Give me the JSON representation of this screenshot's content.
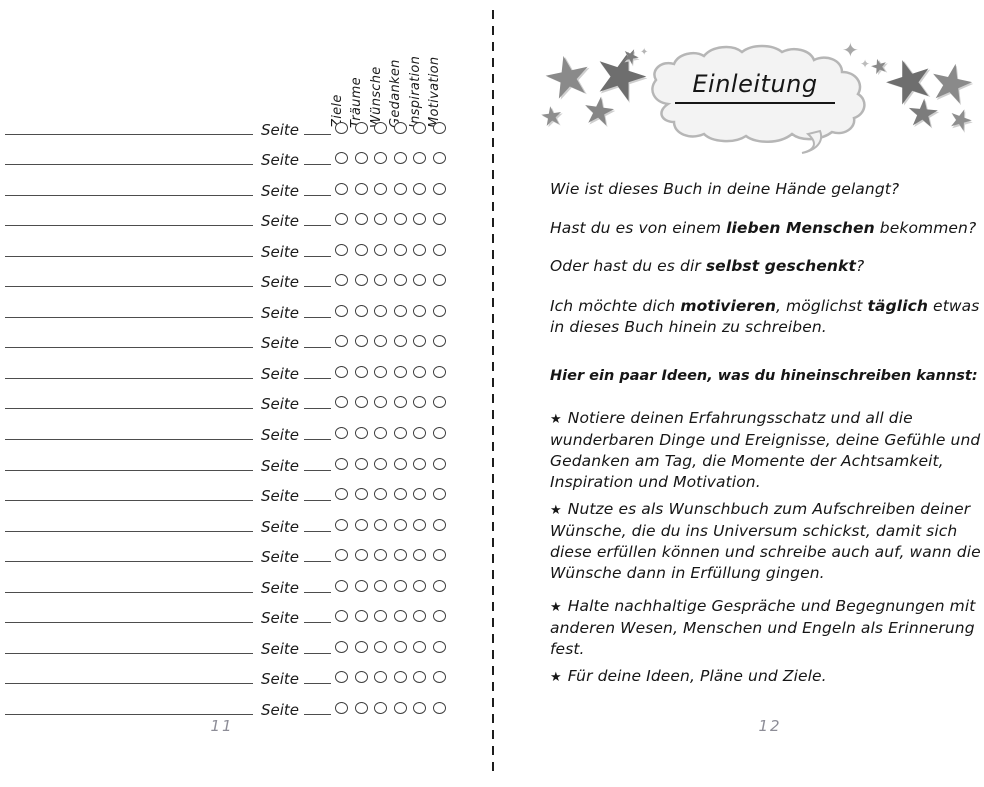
{
  "colors": {
    "ink": "#1b1b1b",
    "line_gray": "#4d4d4d",
    "muted_page_number": "#8d8d97",
    "star_gray": "#7d7d7d",
    "cloud_fill": "#f3f3f3",
    "cloud_stroke": "#b6b6b6"
  },
  "decor": {
    "star_glyph": "★",
    "sparkle_glyph": "✦"
  },
  "left_page": {
    "column_headers": [
      "Ziele",
      "Träume",
      "Wünsche",
      "Gedanken",
      "Inspiration",
      "Motivation"
    ],
    "row_label": "Seite",
    "row_count": 20,
    "circles_per_row": 6,
    "page_number": "11"
  },
  "right_page": {
    "title": "Einleitung",
    "intro_paragraphs": [
      {
        "segments": [
          {
            "text": "Wie ist dieses Buch in deine Hände gelangt?",
            "bold": false
          }
        ]
      },
      {
        "segments": [
          {
            "text": "Hast du es von einem ",
            "bold": false
          },
          {
            "text": "lieben Menschen",
            "bold": true
          },
          {
            "text": " bekommen?",
            "bold": false
          }
        ]
      },
      {
        "segments": [
          {
            "text": "Oder hast du es dir ",
            "bold": false
          },
          {
            "text": "selbst geschenkt",
            "bold": true
          },
          {
            "text": "?",
            "bold": false
          }
        ]
      },
      {
        "segments": [
          {
            "text": "Ich möchte dich ",
            "bold": false
          },
          {
            "text": "motivieren",
            "bold": true
          },
          {
            "text": ", möglichst ",
            "bold": false
          },
          {
            "text": "täglich",
            "bold": true
          },
          {
            "text": " etwas in dieses Buch hinein zu schreiben.",
            "bold": false
          }
        ]
      }
    ],
    "ideas_heading": "Hier ein paar Ideen, was du hineinschreiben kannst:",
    "bullet_icon": "★",
    "bullets": [
      "Notiere deinen Erfahrungsschatz und all die wunderbaren Dinge und Ereignisse, deine Gefühle und Gedanken am Tag, die Momente der Achtsamkeit, Inspiration und Motivation.",
      "Nutze es als Wunschbuch zum Aufschreiben deiner Wünsche, die du ins Universum schickst, damit sich diese erfüllen können und schreibe auch auf, wann die Wünsche dann in Erfüllung gingen.",
      "Halte nachhaltige Gespräche und Begegnungen mit anderen Wesen, Menschen und Engeln als Erinnerung fest.",
      "Für deine Ideen, Pläne und Ziele."
    ],
    "page_number": "12"
  }
}
